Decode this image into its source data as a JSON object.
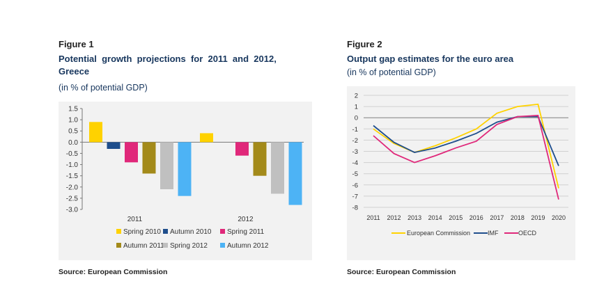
{
  "figure1": {
    "label": "Figure 1",
    "title_line1": "Potential  growth  projections  for  2011  and  2012,",
    "title_line2": "Greece",
    "subtitle": "(in % of potential GDP)",
    "source": "Source: European Commission"
  },
  "figure2": {
    "label": "Figure 2",
    "title": "Output gap estimates for the euro area",
    "subtitle": "(in % of potential GDP)",
    "source": "Source: European Commission"
  },
  "chart_data": [
    {
      "type": "bar",
      "title": "Potential growth projections for 2011 and 2012, Greece",
      "ylabel": "% of potential GDP",
      "ylim": [
        -3.0,
        1.5
      ],
      "yticks": [
        "1.5",
        "1.0",
        "0.5",
        "0.0",
        "-0.5",
        "-1.0",
        "-1.5",
        "-2.0",
        "-2.5",
        "-3.0"
      ],
      "categories": [
        "2011",
        "2012"
      ],
      "series": [
        {
          "name": "Spring 2010",
          "color": "#ffd200",
          "values": [
            0.9,
            0.4
          ]
        },
        {
          "name": "Autumn 2010",
          "color": "#1f4e8c",
          "values": [
            -0.3,
            null
          ]
        },
        {
          "name": "Spring 2011",
          "color": "#e0287a",
          "values": [
            -0.9,
            -0.6
          ]
        },
        {
          "name": "Autumn 2011",
          "color": "#a38a1a",
          "values": [
            -1.4,
            -1.5
          ]
        },
        {
          "name": "Spring 2012",
          "color": "#c0c0c0",
          "values": [
            -2.1,
            -2.3
          ]
        },
        {
          "name": "Autumn 2012",
          "color": "#4db3f5",
          "values": [
            -2.4,
            -2.8
          ]
        }
      ],
      "legend": "bottom"
    },
    {
      "type": "line",
      "title": "Output gap estimates for the euro area",
      "ylabel": "% of potential GDP",
      "x": [
        "2011",
        "2012",
        "2013",
        "2014",
        "2015",
        "2016",
        "2017",
        "2018",
        "2019",
        "2020"
      ],
      "ylim": [
        -8,
        2
      ],
      "yticks": [
        "2",
        "1",
        "0",
        "-1",
        "-2",
        "-3",
        "-4",
        "-5",
        "-6",
        "-7",
        "-8"
      ],
      "series": [
        {
          "name": "European Commission",
          "color": "#ffd200",
          "values": [
            -1.0,
            -2.3,
            -3.1,
            -2.5,
            -1.8,
            -1.0,
            0.4,
            1.0,
            1.2,
            -6.3
          ]
        },
        {
          "name": "IMF",
          "color": "#1f4e8c",
          "values": [
            -0.7,
            -2.2,
            -3.1,
            -2.7,
            -2.1,
            -1.4,
            -0.4,
            0.1,
            0.1,
            -4.3
          ]
        },
        {
          "name": "OECD",
          "color": "#e0287a",
          "values": [
            -1.6,
            -3.2,
            -4.0,
            -3.4,
            -2.7,
            -2.1,
            -0.6,
            0.1,
            0.2,
            -7.3
          ]
        }
      ],
      "legend": "bottom"
    }
  ]
}
